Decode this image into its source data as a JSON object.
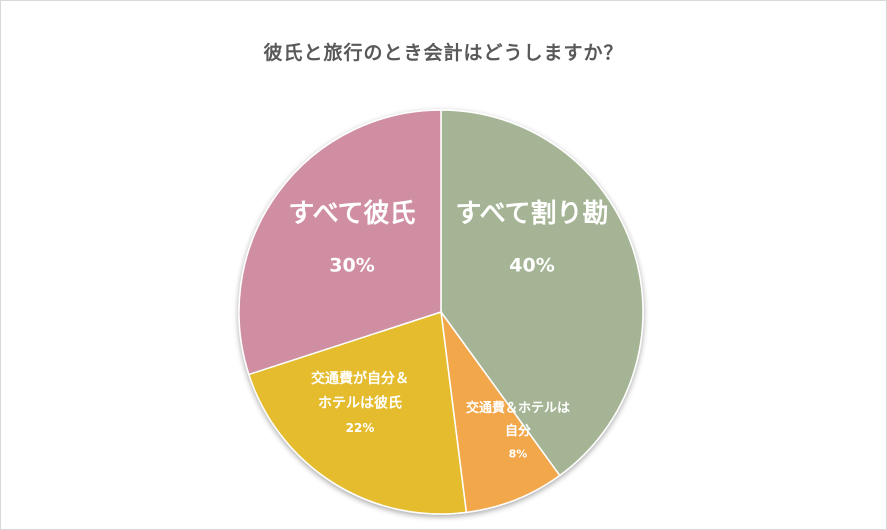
{
  "chart_data": {
    "type": "pie",
    "title": "彼氏と旅行のとき会計はどうしますか？",
    "slices": [
      {
        "label_lines": [
          "すべて割り勘"
        ],
        "pct_text": "40%",
        "value": 40,
        "color": "#a4b494",
        "size": "large"
      },
      {
        "label_lines": [
          "交通費＆ホテルは",
          "自分"
        ],
        "pct_text": "8%",
        "value": 8,
        "color": "#f2a74c",
        "size": "small"
      },
      {
        "label_lines": [
          "交通費が自分＆",
          "ホテルは彼氏"
        ],
        "pct_text": "22%",
        "value": 22,
        "color": "#e4bc2e",
        "size": "medium"
      },
      {
        "label_lines": [
          "すべて彼氏"
        ],
        "pct_text": "30%",
        "value": 30,
        "color": "#cf8ea2",
        "size": "large"
      }
    ]
  }
}
